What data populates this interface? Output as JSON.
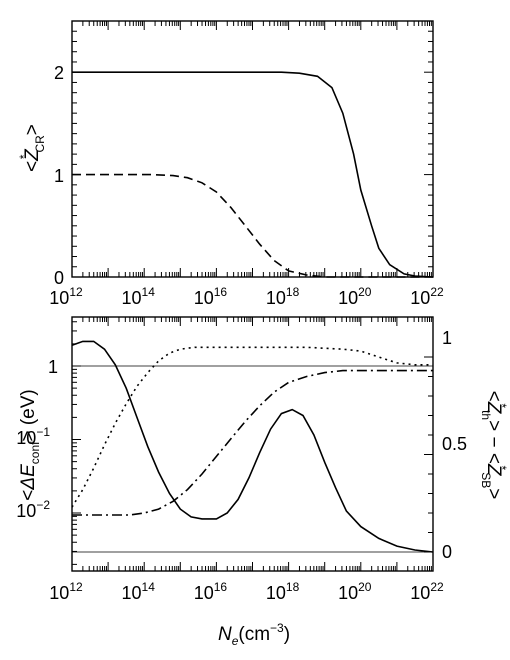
{
  "chart_data": [
    {
      "type": "line",
      "ylabel": {
        "prefix": "<",
        "star": "*",
        "var": "Z",
        "sub": "CR",
        "suffix": ">"
      },
      "x_scale": "log",
      "xlim": [
        1000000000000.0,
        1e+22
      ],
      "ylim": [
        0,
        2.5
      ],
      "x_ticks": [
        {
          "base": "10",
          "exp": "12"
        },
        {
          "base": "10",
          "exp": "14"
        },
        {
          "base": "10",
          "exp": "16"
        },
        {
          "base": "10",
          "exp": "18"
        },
        {
          "base": "10",
          "exp": "20"
        },
        {
          "base": "10",
          "exp": "22"
        }
      ],
      "y_ticks": [
        "0",
        "1",
        "2"
      ],
      "series": [
        {
          "style": "solid",
          "x": [
            12,
            17,
            17.8,
            18.3,
            18.8,
            19.2,
            19.5,
            19.8,
            20.0,
            20.3,
            20.5,
            20.8,
            21.2,
            21.5,
            22
          ],
          "y": [
            2.0,
            2.0,
            2.0,
            1.99,
            1.96,
            1.85,
            1.6,
            1.2,
            0.85,
            0.5,
            0.28,
            0.12,
            0.03,
            0.01,
            0.0
          ]
        },
        {
          "style": "dashed",
          "x": [
            12,
            14.2,
            14.8,
            15.2,
            15.6,
            16.0,
            16.4,
            16.8,
            17.2,
            17.6,
            18.0,
            18.5,
            19.0,
            22
          ],
          "y": [
            1.0,
            1.0,
            0.99,
            0.97,
            0.92,
            0.83,
            0.68,
            0.5,
            0.32,
            0.16,
            0.06,
            0.02,
            0.0,
            0.0
          ]
        }
      ]
    },
    {
      "type": "line",
      "ylabel_left": {
        "prefix": "<",
        "var": "ΔE",
        "sub": "conf",
        "suffix": "> (eV)"
      },
      "ylabel_right": {
        "star": "*",
        "var": "Z",
        "sub1": "th",
        "sub2": "SB"
      },
      "xlabel": {
        "var": "N",
        "sub": "e",
        "unit": "(cm",
        "exp": "−3",
        "close": ")"
      },
      "x_scale": "log",
      "xlim": [
        1000000000000.0,
        1e+22
      ],
      "y_left_scale": "log",
      "y_left_ticks": [
        {
          "base": "1",
          "exp": ""
        },
        {
          "base": "10",
          "exp": "−1"
        },
        {
          "base": "10",
          "exp": "−2"
        }
      ],
      "y_right_ticks": [
        "0",
        "0.5",
        "1"
      ],
      "y_right_lim": [
        0,
        1.08
      ],
      "x_ticks": [
        {
          "base": "10",
          "exp": "12"
        },
        {
          "base": "10",
          "exp": "14"
        },
        {
          "base": "10",
          "exp": "16"
        },
        {
          "base": "10",
          "exp": "18"
        },
        {
          "base": "10",
          "exp": "20"
        },
        {
          "base": "10",
          "exp": "22"
        }
      ],
      "series": [
        {
          "style": "solid",
          "axis": "right",
          "x": [
            12,
            12.3,
            12.6,
            12.9,
            13.2,
            13.5,
            13.8,
            14.1,
            14.4,
            14.7,
            15.0,
            15.3,
            15.6,
            16.0,
            16.3,
            16.6,
            16.9,
            17.2,
            17.5,
            17.8,
            18.1,
            18.4,
            18.7,
            19.0,
            19.3,
            19.6,
            20.0,
            20.5,
            21.0,
            21.5,
            22
          ],
          "y": [
            1.06,
            1.08,
            1.08,
            1.04,
            0.96,
            0.84,
            0.69,
            0.54,
            0.41,
            0.3,
            0.22,
            0.18,
            0.17,
            0.17,
            0.2,
            0.27,
            0.38,
            0.51,
            0.63,
            0.71,
            0.73,
            0.7,
            0.6,
            0.46,
            0.33,
            0.21,
            0.13,
            0.07,
            0.03,
            0.01,
            0.0
          ]
        },
        {
          "style": "dotted",
          "axis": "right",
          "x": [
            12,
            12.3,
            12.6,
            12.9,
            13.2,
            13.5,
            13.8,
            14.1,
            14.4,
            14.7,
            15.0,
            15.4,
            15.8,
            16.5,
            17.5,
            18.5,
            19.5,
            20.0,
            20.5,
            21.0,
            21.5,
            22
          ],
          "y": [
            0.23,
            0.32,
            0.43,
            0.55,
            0.66,
            0.76,
            0.85,
            0.92,
            0.98,
            1.02,
            1.04,
            1.05,
            1.05,
            1.05,
            1.05,
            1.05,
            1.04,
            1.03,
            1.0,
            0.97,
            0.96,
            0.96
          ]
        },
        {
          "style": "dashdot",
          "axis": "right",
          "x": [
            12,
            13.0,
            13.6,
            14.0,
            14.4,
            14.8,
            15.2,
            15.6,
            16.0,
            16.4,
            16.8,
            17.2,
            17.6,
            18.0,
            18.5,
            19.0,
            19.5,
            20.0,
            21.0,
            22
          ],
          "y": [
            0.19,
            0.19,
            0.19,
            0.2,
            0.22,
            0.26,
            0.32,
            0.4,
            0.49,
            0.58,
            0.67,
            0.75,
            0.82,
            0.87,
            0.9,
            0.92,
            0.93,
            0.93,
            0.93,
            0.93
          ]
        }
      ],
      "reference_lines": [
        {
          "axis": "left",
          "y": 1
        },
        {
          "axis": "right",
          "y": 0
        }
      ]
    }
  ]
}
